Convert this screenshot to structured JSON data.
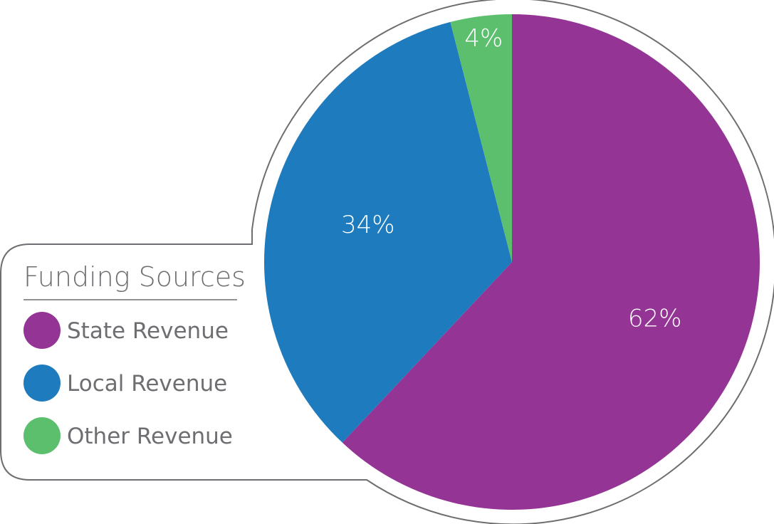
{
  "chart_data": {
    "type": "pie",
    "title": "Funding Sources",
    "start_angle_deg": 0,
    "direction": "clockwise",
    "slices": [
      {
        "name": "State Revenue",
        "value": 62,
        "label": "62%",
        "color": "#943595"
      },
      {
        "name": "Local Revenue",
        "value": 34,
        "label": "34%",
        "color": "#1e7bbd"
      },
      {
        "name": "Other Revenue",
        "value": 4,
        "label": "4%",
        "color": "#5cbf6e"
      }
    ],
    "legend": {
      "title": "Funding Sources",
      "placement": "bottom-left",
      "items": [
        "State Revenue",
        "Local Revenue",
        "Other Revenue"
      ]
    }
  },
  "colors": {
    "outline": "#6d6e71",
    "text": "#6d6e71",
    "slice_label": "#ffffff"
  }
}
